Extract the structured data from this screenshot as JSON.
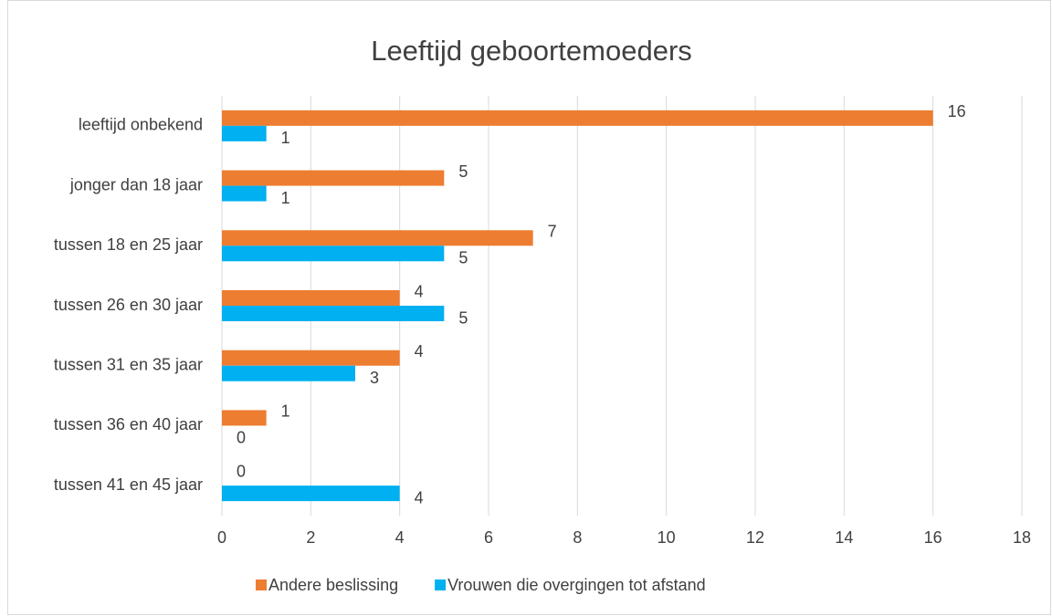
{
  "chart_data": {
    "type": "bar",
    "orientation": "horizontal",
    "title": "Leeftijd geboortemoeders",
    "categories": [
      "leeftijd onbekend",
      "jonger dan 18 jaar",
      "tussen 18 en 25 jaar",
      "tussen 26 en 30 jaar",
      "tussen 31 en 35 jaar",
      "tussen 36 en 40 jaar",
      "tussen 41 en 45 jaar"
    ],
    "series": [
      {
        "name": "Andere beslissing",
        "color": "#ed7d31",
        "values": [
          16,
          5,
          7,
          4,
          4,
          1,
          0
        ]
      },
      {
        "name": "Vrouwen die overgingen tot afstand",
        "color": "#00b0f0",
        "values": [
          1,
          1,
          5,
          5,
          3,
          0,
          4
        ]
      }
    ],
    "xlim": [
      0,
      18
    ],
    "xticks": [
      0,
      2,
      4,
      6,
      8,
      10,
      12,
      14,
      16,
      18
    ],
    "grid": true,
    "legend": "bottom"
  }
}
